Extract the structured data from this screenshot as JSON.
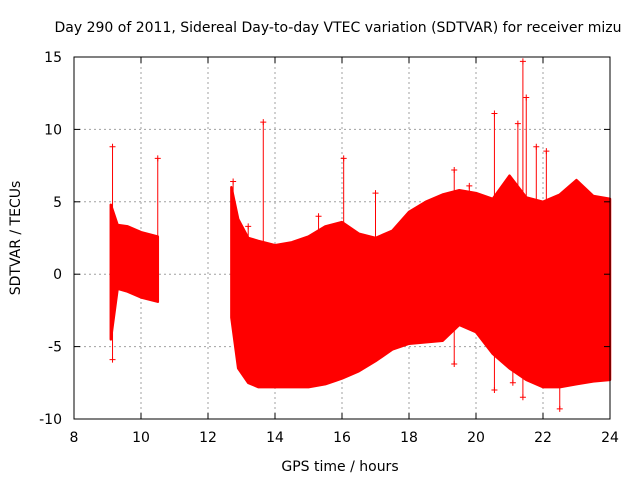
{
  "chart_data": {
    "type": "scatter",
    "title": "Day 290 of 2011, Sidereal Day-to-day VTEC variation (SDTVAR) for receiver mizu",
    "xlabel": "GPS time / hours",
    "ylabel": "SDTVAR / TECUs",
    "xlim": [
      8,
      24
    ],
    "ylim": [
      -10,
      15
    ],
    "xticks": [
      8,
      10,
      12,
      14,
      16,
      18,
      20,
      22,
      24
    ],
    "yticks": [
      -10,
      -5,
      0,
      5,
      10,
      15
    ],
    "grid": true,
    "marker": "+",
    "color": "#ff0000",
    "series": [
      {
        "name": "SDTVAR",
        "envelope": {
          "x": [
            9.1,
            9.3,
            9.6,
            10.0,
            10.5,
            12.7,
            12.9,
            13.2,
            13.5,
            14.0,
            14.5,
            15.0,
            15.5,
            16.0,
            16.5,
            17.0,
            17.5,
            18.0,
            18.5,
            19.0,
            19.5,
            20.0,
            20.5,
            21.0,
            21.5,
            22.0,
            22.5,
            23.0,
            23.5,
            24.0
          ],
          "upper": [
            4.8,
            3.4,
            3.3,
            2.9,
            2.6,
            6.0,
            3.8,
            2.5,
            2.3,
            2.0,
            2.2,
            2.6,
            3.3,
            3.6,
            2.8,
            2.5,
            3.0,
            4.3,
            5.0,
            5.5,
            5.8,
            5.6,
            5.2,
            6.8,
            5.3,
            5.0,
            5.5,
            6.5,
            5.4,
            5.2
          ],
          "lower": [
            -4.5,
            -1.0,
            -1.2,
            -1.6,
            -1.9,
            -3.0,
            -6.5,
            -7.5,
            -7.8,
            -7.8,
            -7.8,
            -7.8,
            -7.6,
            -7.2,
            -6.7,
            -6.0,
            -5.2,
            -4.8,
            -4.7,
            -4.6,
            -3.5,
            -4.0,
            -5.5,
            -6.5,
            -7.3,
            -7.8,
            -7.8,
            -7.6,
            -7.4,
            -7.3
          ]
        },
        "spikes": [
          {
            "x": 9.15,
            "y": 8.8
          },
          {
            "x": 9.15,
            "y": -5.9
          },
          {
            "x": 10.5,
            "y": 8.0
          },
          {
            "x": 12.75,
            "y": 6.4
          },
          {
            "x": 13.2,
            "y": 3.3
          },
          {
            "x": 13.65,
            "y": 10.5
          },
          {
            "x": 15.3,
            "y": 4.0
          },
          {
            "x": 16.05,
            "y": 8.0
          },
          {
            "x": 17.0,
            "y": 5.6
          },
          {
            "x": 19.35,
            "y": 7.2
          },
          {
            "x": 19.8,
            "y": 6.1
          },
          {
            "x": 20.55,
            "y": 11.1
          },
          {
            "x": 21.25,
            "y": 10.4
          },
          {
            "x": 21.4,
            "y": 14.7
          },
          {
            "x": 21.5,
            "y": 12.2
          },
          {
            "x": 21.8,
            "y": 8.8
          },
          {
            "x": 22.1,
            "y": 8.5
          },
          {
            "x": 22.5,
            "y": -9.3
          },
          {
            "x": 21.4,
            "y": -8.5
          },
          {
            "x": 20.55,
            "y": -8.0
          },
          {
            "x": 21.1,
            "y": -7.5
          },
          {
            "x": 19.35,
            "y": -6.2
          }
        ]
      }
    ]
  }
}
